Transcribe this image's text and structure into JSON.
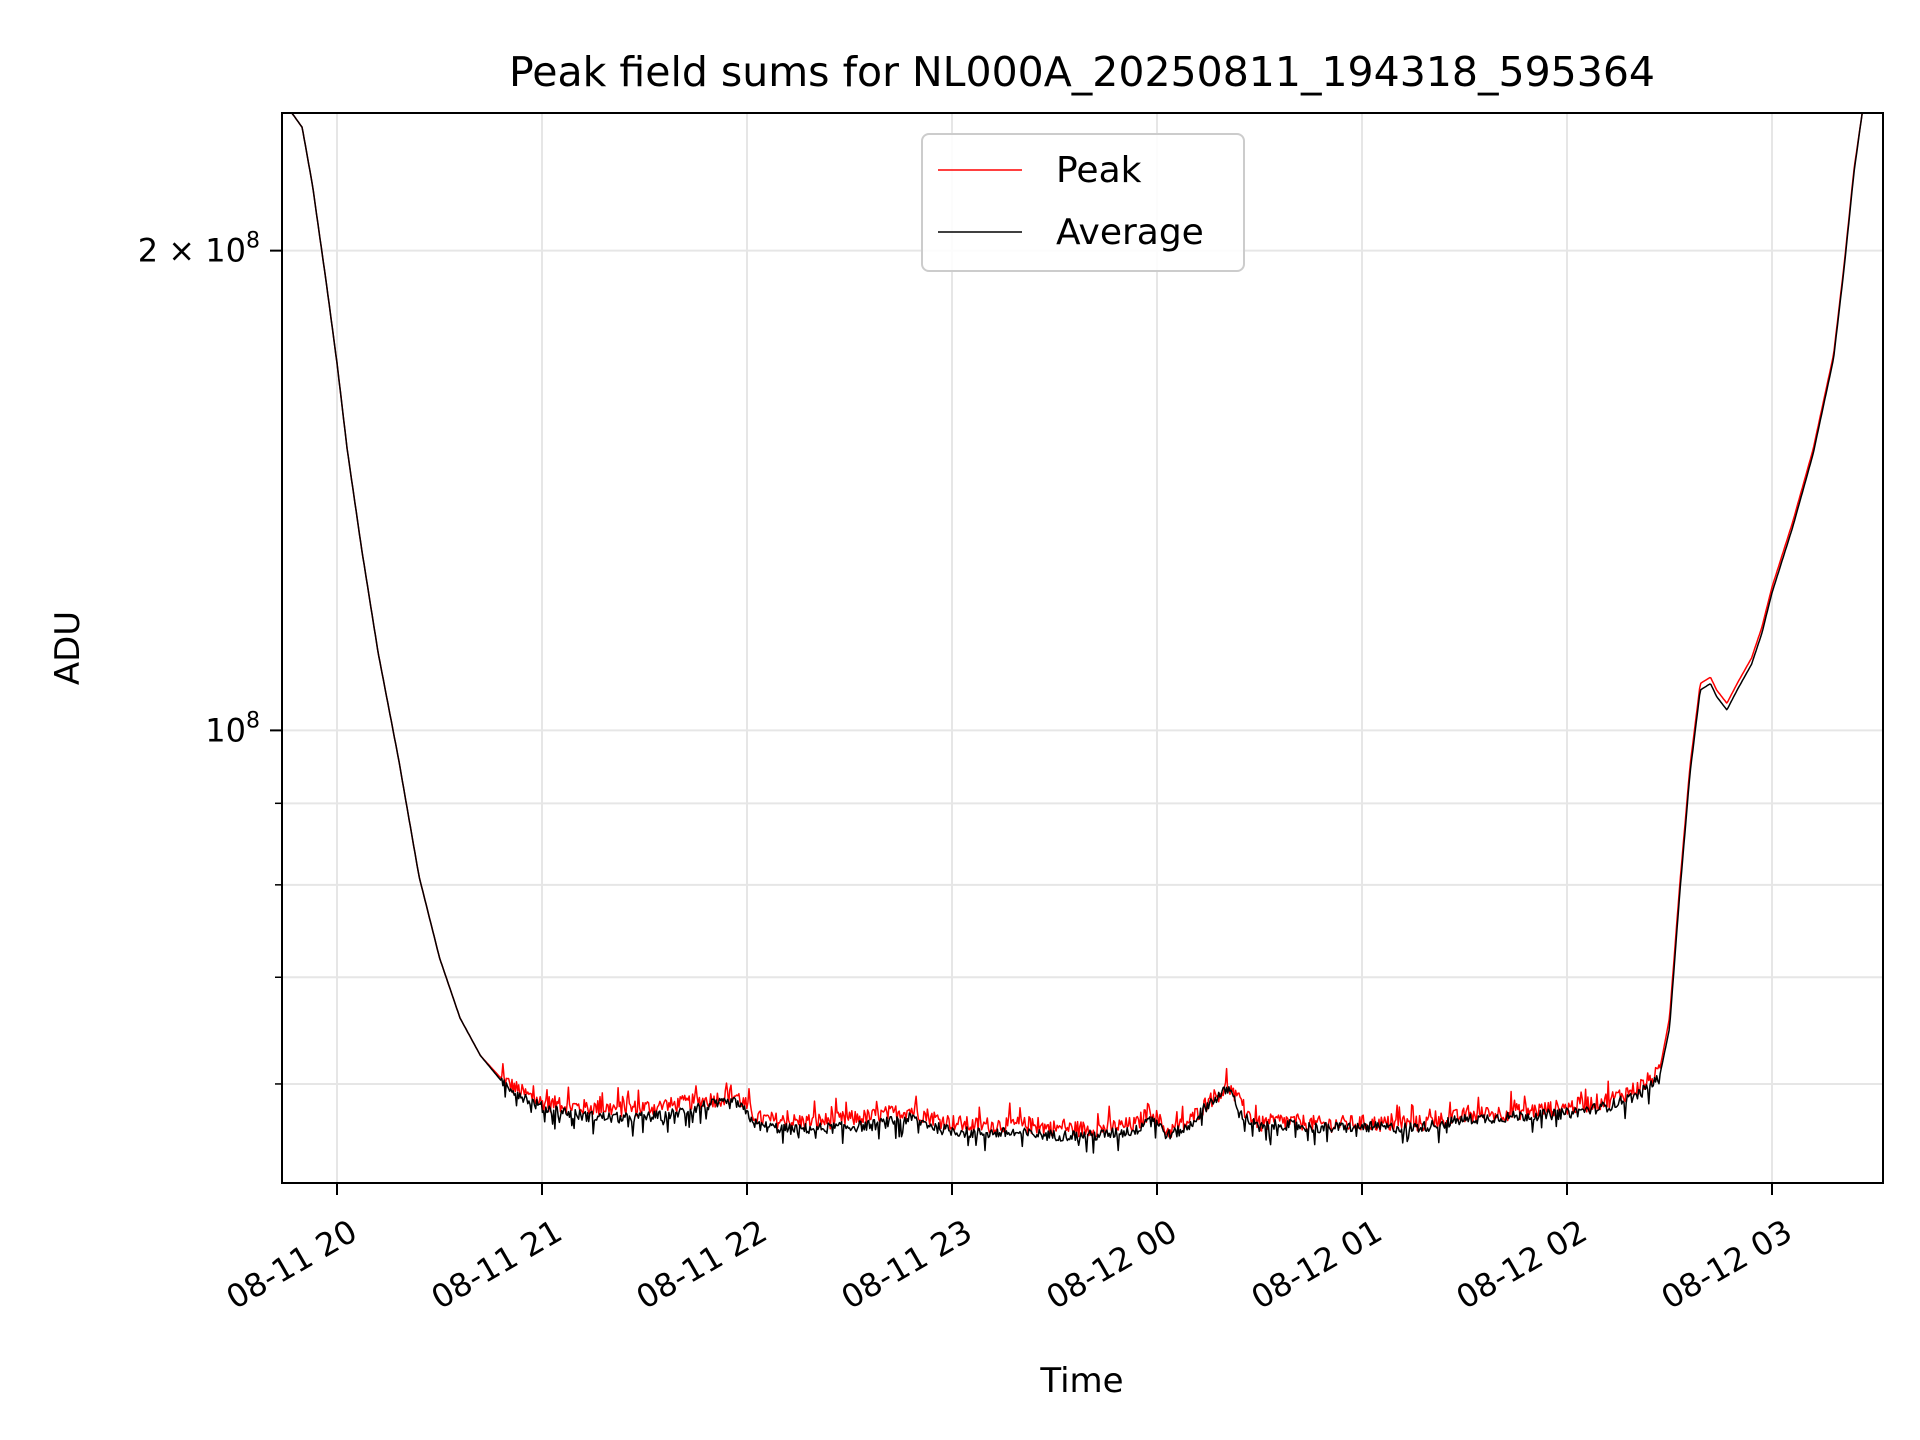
{
  "chart_data": {
    "type": "line",
    "title": "Peak field sums for NL000A_20250811_194318_595364",
    "xlabel": "Time",
    "ylabel": "ADU",
    "x_range": [
      "2025-08-11 19:44",
      "2025-08-12 03:34"
    ],
    "y_scale": "log",
    "ylim": [
      52000000,
      244000000
    ],
    "grid": true,
    "legend_position": "top-center",
    "x_ticks": [
      {
        "t": 1.0,
        "label": "08-11 20"
      },
      {
        "t": 2.0,
        "label": "08-11 21"
      },
      {
        "t": 3.0,
        "label": "08-11 22"
      },
      {
        "t": 4.0,
        "label": "08-11 23"
      },
      {
        "t": 5.0,
        "label": "08-12 00"
      },
      {
        "t": 6.0,
        "label": "08-12 01"
      },
      {
        "t": 7.0,
        "label": "08-12 02"
      },
      {
        "t": 8.0,
        "label": "08-12 03"
      }
    ],
    "y_ticks": [
      {
        "value": 200000000,
        "label_base": "2 × 10",
        "label_exp": "8"
      },
      {
        "value": 100000000,
        "label_base": "10",
        "label_exp": "8"
      }
    ],
    "y_minor_ticks": [
      60000000,
      70000000,
      80000000,
      90000000
    ],
    "series": [
      {
        "name": "Peak",
        "color": "#ff0000",
        "x": [
          0.73,
          0.78,
          0.83,
          0.88,
          0.95,
          1.0,
          1.05,
          1.12,
          1.2,
          1.3,
          1.4,
          1.5,
          1.6,
          1.7,
          1.8,
          1.9,
          2.0,
          2.2,
          2.4,
          2.6,
          2.8,
          2.95,
          3.05,
          3.2,
          3.4,
          3.6,
          3.8,
          3.95,
          4.1,
          4.3,
          4.5,
          4.7,
          4.9,
          4.97,
          5.05,
          5.15,
          5.25,
          5.35,
          5.42,
          5.5,
          5.6,
          5.8,
          6.0,
          6.2,
          6.3,
          6.5,
          6.8,
          7.0,
          7.2,
          7.35,
          7.45,
          7.5,
          7.55,
          7.6,
          7.65,
          7.7,
          7.73,
          7.78,
          7.83,
          7.9,
          7.95,
          8.0,
          8.1,
          8.2,
          8.3,
          8.35,
          8.4,
          8.44
        ],
        "values": [
          244000000,
          244000000,
          239000000,
          220000000,
          190000000,
          170000000,
          150000000,
          130000000,
          112000000,
          96000000,
          81000000,
          72000000,
          66000000,
          62500000,
          60500000,
          59300000,
          58400000,
          58000000,
          57900000,
          58100000,
          58600000,
          59000000,
          57100000,
          56800000,
          56900000,
          57200000,
          57800000,
          56900000,
          56500000,
          56600000,
          56300000,
          56200000,
          56600000,
          57800000,
          56000000,
          56700000,
          58500000,
          59800000,
          57800000,
          56600000,
          56900000,
          56600000,
          56700000,
          56600000,
          56700000,
          57300000,
          57700000,
          58000000,
          58600000,
          59700000,
          61000000,
          66000000,
          80000000,
          95000000,
          107000000,
          108000000,
          106000000,
          104000000,
          107000000,
          111000000,
          116000000,
          123000000,
          135000000,
          150000000,
          172000000,
          195000000,
          225000000,
          244000000
        ]
      },
      {
        "name": "Average",
        "color": "#000000",
        "x": [
          0.73,
          0.78,
          0.83,
          0.88,
          0.95,
          1.0,
          1.05,
          1.12,
          1.2,
          1.3,
          1.4,
          1.5,
          1.6,
          1.7,
          1.8,
          1.9,
          2.0,
          2.2,
          2.4,
          2.6,
          2.8,
          2.95,
          3.05,
          3.2,
          3.4,
          3.6,
          3.8,
          3.95,
          4.1,
          4.3,
          4.5,
          4.7,
          4.9,
          4.97,
          5.05,
          5.15,
          5.25,
          5.35,
          5.42,
          5.5,
          5.6,
          5.8,
          6.0,
          6.2,
          6.3,
          6.5,
          6.8,
          7.0,
          7.2,
          7.35,
          7.45,
          7.5,
          7.55,
          7.6,
          7.65,
          7.7,
          7.73,
          7.78,
          7.83,
          7.9,
          7.95,
          8.0,
          8.1,
          8.2,
          8.3,
          8.35,
          8.4,
          8.44
        ],
        "values": [
          244000000,
          244000000,
          239000000,
          220000000,
          190000000,
          170000000,
          150000000,
          130000000,
          112000000,
          96000000,
          81000000,
          72000000,
          66000000,
          62500000,
          60300000,
          59000000,
          58000000,
          57300000,
          57100000,
          57300000,
          58200000,
          58400000,
          56500000,
          56200000,
          56300000,
          56500000,
          57100000,
          56200000,
          55900000,
          55900000,
          55700000,
          55700000,
          56100000,
          57400000,
          55700000,
          56300000,
          58300000,
          59600000,
          57300000,
          56300000,
          56600000,
          56300000,
          56400000,
          56300000,
          56400000,
          57000000,
          57300000,
          57500000,
          58100000,
          59100000,
          60500000,
          65000000,
          79000000,
          94000000,
          106000000,
          107000000,
          105000000,
          103000000,
          106000000,
          110000000,
          115000000,
          122000000,
          134000000,
          149000000,
          171000000,
          194000000,
          224000000,
          244000000
        ]
      }
    ]
  }
}
